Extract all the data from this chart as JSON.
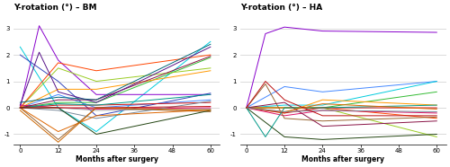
{
  "title_bm": "Y-rotation (°) – BM",
  "title_ha": "Y-rotation (°) – HA",
  "xlabel": "Months after surgery",
  "x_ticks": [
    0,
    12,
    24,
    36,
    48,
    60
  ],
  "ylim": [
    -1.4,
    3.6
  ],
  "yticks": [
    -1,
    0,
    1,
    2,
    3
  ],
  "bm_curves": [
    {
      "color": "#00ccdd",
      "data": [
        [
          0,
          2.3
        ],
        [
          12,
          0.0
        ],
        [
          24,
          -0.9
        ],
        [
          60,
          2.5
        ]
      ]
    },
    {
      "color": "#8800cc",
      "data": [
        [
          0,
          0.0
        ],
        [
          6,
          3.1
        ],
        [
          12,
          1.8
        ],
        [
          24,
          0.5
        ],
        [
          60,
          0.5
        ]
      ]
    },
    {
      "color": "#3344bb",
      "data": [
        [
          0,
          2.0
        ],
        [
          12,
          1.0
        ],
        [
          24,
          -0.3
        ],
        [
          60,
          0.55
        ]
      ]
    },
    {
      "color": "#4488ff",
      "data": [
        [
          0,
          0.0
        ],
        [
          12,
          0.5
        ],
        [
          24,
          0.0
        ],
        [
          60,
          0.3
        ]
      ]
    },
    {
      "color": "#33bb33",
      "data": [
        [
          0,
          0.0
        ],
        [
          12,
          0.2
        ],
        [
          24,
          0.2
        ],
        [
          60,
          1.9
        ]
      ]
    },
    {
      "color": "#99cc22",
      "data": [
        [
          0,
          0.0
        ],
        [
          12,
          1.5
        ],
        [
          24,
          1.0
        ],
        [
          60,
          1.5
        ]
      ]
    },
    {
      "color": "#ff9900",
      "data": [
        [
          0,
          0.0
        ],
        [
          12,
          0.7
        ],
        [
          24,
          0.7
        ],
        [
          60,
          1.4
        ]
      ]
    },
    {
      "color": "#ff4400",
      "data": [
        [
          0,
          0.0
        ],
        [
          12,
          1.7
        ],
        [
          24,
          1.4
        ],
        [
          60,
          2.0
        ]
      ]
    },
    {
      "color": "#cc1111",
      "data": [
        [
          0,
          0.0
        ],
        [
          12,
          0.1
        ],
        [
          24,
          0.1
        ],
        [
          60,
          0.2
        ]
      ]
    },
    {
      "color": "#dd1166",
      "data": [
        [
          0,
          0.1
        ],
        [
          12,
          0.0
        ],
        [
          24,
          -0.05
        ],
        [
          60,
          0.0
        ]
      ]
    },
    {
      "color": "#aaaaaa",
      "data": [
        [
          0,
          0.0
        ],
        [
          12,
          0.0
        ],
        [
          24,
          -0.1
        ],
        [
          60,
          -0.05
        ]
      ]
    },
    {
      "color": "#996633",
      "data": [
        [
          0,
          0.0
        ],
        [
          12,
          -1.2
        ],
        [
          24,
          0.0
        ],
        [
          60,
          -0.15
        ]
      ]
    },
    {
      "color": "#778899",
      "data": [
        [
          0,
          0.0
        ],
        [
          12,
          -0.1
        ],
        [
          24,
          -0.4
        ],
        [
          60,
          0.25
        ]
      ]
    },
    {
      "color": "#009988",
      "data": [
        [
          0,
          0.0
        ],
        [
          12,
          0.15
        ],
        [
          24,
          0.1
        ],
        [
          60,
          0.5
        ]
      ]
    },
    {
      "color": "#dd6600",
      "data": [
        [
          0,
          0.0
        ],
        [
          12,
          -0.9
        ],
        [
          24,
          -0.3
        ],
        [
          60,
          -0.08
        ]
      ]
    },
    {
      "color": "#881144",
      "data": [
        [
          0,
          0.0
        ],
        [
          12,
          0.3
        ],
        [
          24,
          0.3
        ],
        [
          60,
          1.95
        ]
      ]
    },
    {
      "color": "#224411",
      "data": [
        [
          0,
          0.0
        ],
        [
          12,
          0.0
        ],
        [
          24,
          -1.0
        ],
        [
          60,
          -0.1
        ]
      ]
    },
    {
      "color": "#bb1111",
      "data": [
        [
          0,
          0.0
        ],
        [
          12,
          0.0
        ],
        [
          24,
          0.0
        ],
        [
          60,
          0.05
        ]
      ]
    },
    {
      "color": "#551188",
      "data": [
        [
          0,
          0.1
        ],
        [
          6,
          2.1
        ],
        [
          12,
          0.6
        ],
        [
          24,
          0.2
        ],
        [
          60,
          2.3
        ]
      ]
    },
    {
      "color": "#006677",
      "data": [
        [
          0,
          0.2
        ],
        [
          12,
          0.4
        ],
        [
          24,
          0.3
        ],
        [
          60,
          2.4
        ]
      ]
    },
    {
      "color": "#cc6600",
      "data": [
        [
          0,
          -0.1
        ],
        [
          12,
          -1.3
        ],
        [
          24,
          0.0
        ],
        [
          60,
          -0.1
        ]
      ]
    }
  ],
  "ha_curves": [
    {
      "color": "#8800cc",
      "data": [
        [
          0,
          0.0
        ],
        [
          6,
          2.8
        ],
        [
          12,
          3.05
        ],
        [
          24,
          2.9
        ],
        [
          60,
          2.85
        ]
      ]
    },
    {
      "color": "#4488ff",
      "data": [
        [
          0,
          0.0
        ],
        [
          12,
          0.8
        ],
        [
          24,
          0.6
        ],
        [
          60,
          1.0
        ]
      ]
    },
    {
      "color": "#00ccdd",
      "data": [
        [
          0,
          0.0
        ],
        [
          12,
          0.1
        ],
        [
          24,
          0.1
        ],
        [
          60,
          1.0
        ]
      ]
    },
    {
      "color": "#33bb33",
      "data": [
        [
          0,
          0.0
        ],
        [
          12,
          0.0
        ],
        [
          24,
          0.0
        ],
        [
          60,
          0.6
        ]
      ]
    },
    {
      "color": "#99cc22",
      "data": [
        [
          0,
          0.0
        ],
        [
          12,
          0.0
        ],
        [
          24,
          0.0
        ],
        [
          60,
          -1.1
        ]
      ]
    },
    {
      "color": "#ff9900",
      "data": [
        [
          0,
          0.0
        ],
        [
          12,
          -0.2
        ],
        [
          24,
          0.3
        ],
        [
          60,
          0.1
        ]
      ]
    },
    {
      "color": "#ff4400",
      "data": [
        [
          0,
          0.0
        ],
        [
          12,
          0.0
        ],
        [
          24,
          0.0
        ],
        [
          60,
          -0.4
        ]
      ]
    },
    {
      "color": "#cc1111",
      "data": [
        [
          0,
          0.0
        ],
        [
          12,
          -0.2
        ],
        [
          24,
          0.0
        ],
        [
          60,
          0.0
        ]
      ]
    },
    {
      "color": "#dd1166",
      "data": [
        [
          0,
          0.0
        ],
        [
          12,
          -0.3
        ],
        [
          24,
          -0.1
        ],
        [
          60,
          -0.2
        ]
      ]
    },
    {
      "color": "#996633",
      "data": [
        [
          0,
          0.0
        ],
        [
          6,
          0.9
        ],
        [
          12,
          -0.4
        ],
        [
          24,
          -0.5
        ],
        [
          60,
          -0.35
        ]
      ]
    },
    {
      "color": "#881144",
      "data": [
        [
          0,
          0.0
        ],
        [
          12,
          0.2
        ],
        [
          24,
          -0.7
        ],
        [
          60,
          -0.5
        ]
      ]
    },
    {
      "color": "#224411",
      "data": [
        [
          0,
          0.0
        ],
        [
          12,
          -1.1
        ],
        [
          24,
          -1.2
        ],
        [
          60,
          -1.0
        ]
      ]
    },
    {
      "color": "#009988",
      "data": [
        [
          0,
          0.0
        ],
        [
          6,
          -1.1
        ],
        [
          12,
          0.0
        ],
        [
          24,
          0.0
        ],
        [
          60,
          0.1
        ]
      ]
    },
    {
      "color": "#dd6600",
      "data": [
        [
          0,
          0.0
        ],
        [
          12,
          -0.15
        ],
        [
          24,
          0.15
        ],
        [
          60,
          -0.05
        ]
      ]
    },
    {
      "color": "#778899",
      "data": [
        [
          0,
          0.0
        ],
        [
          12,
          -0.15
        ],
        [
          24,
          -0.1
        ],
        [
          60,
          -0.15
        ]
      ]
    },
    {
      "color": "#bb1111",
      "data": [
        [
          0,
          0.0
        ],
        [
          6,
          1.0
        ],
        [
          12,
          0.3
        ],
        [
          24,
          -0.3
        ],
        [
          60,
          -0.3
        ]
      ]
    }
  ]
}
